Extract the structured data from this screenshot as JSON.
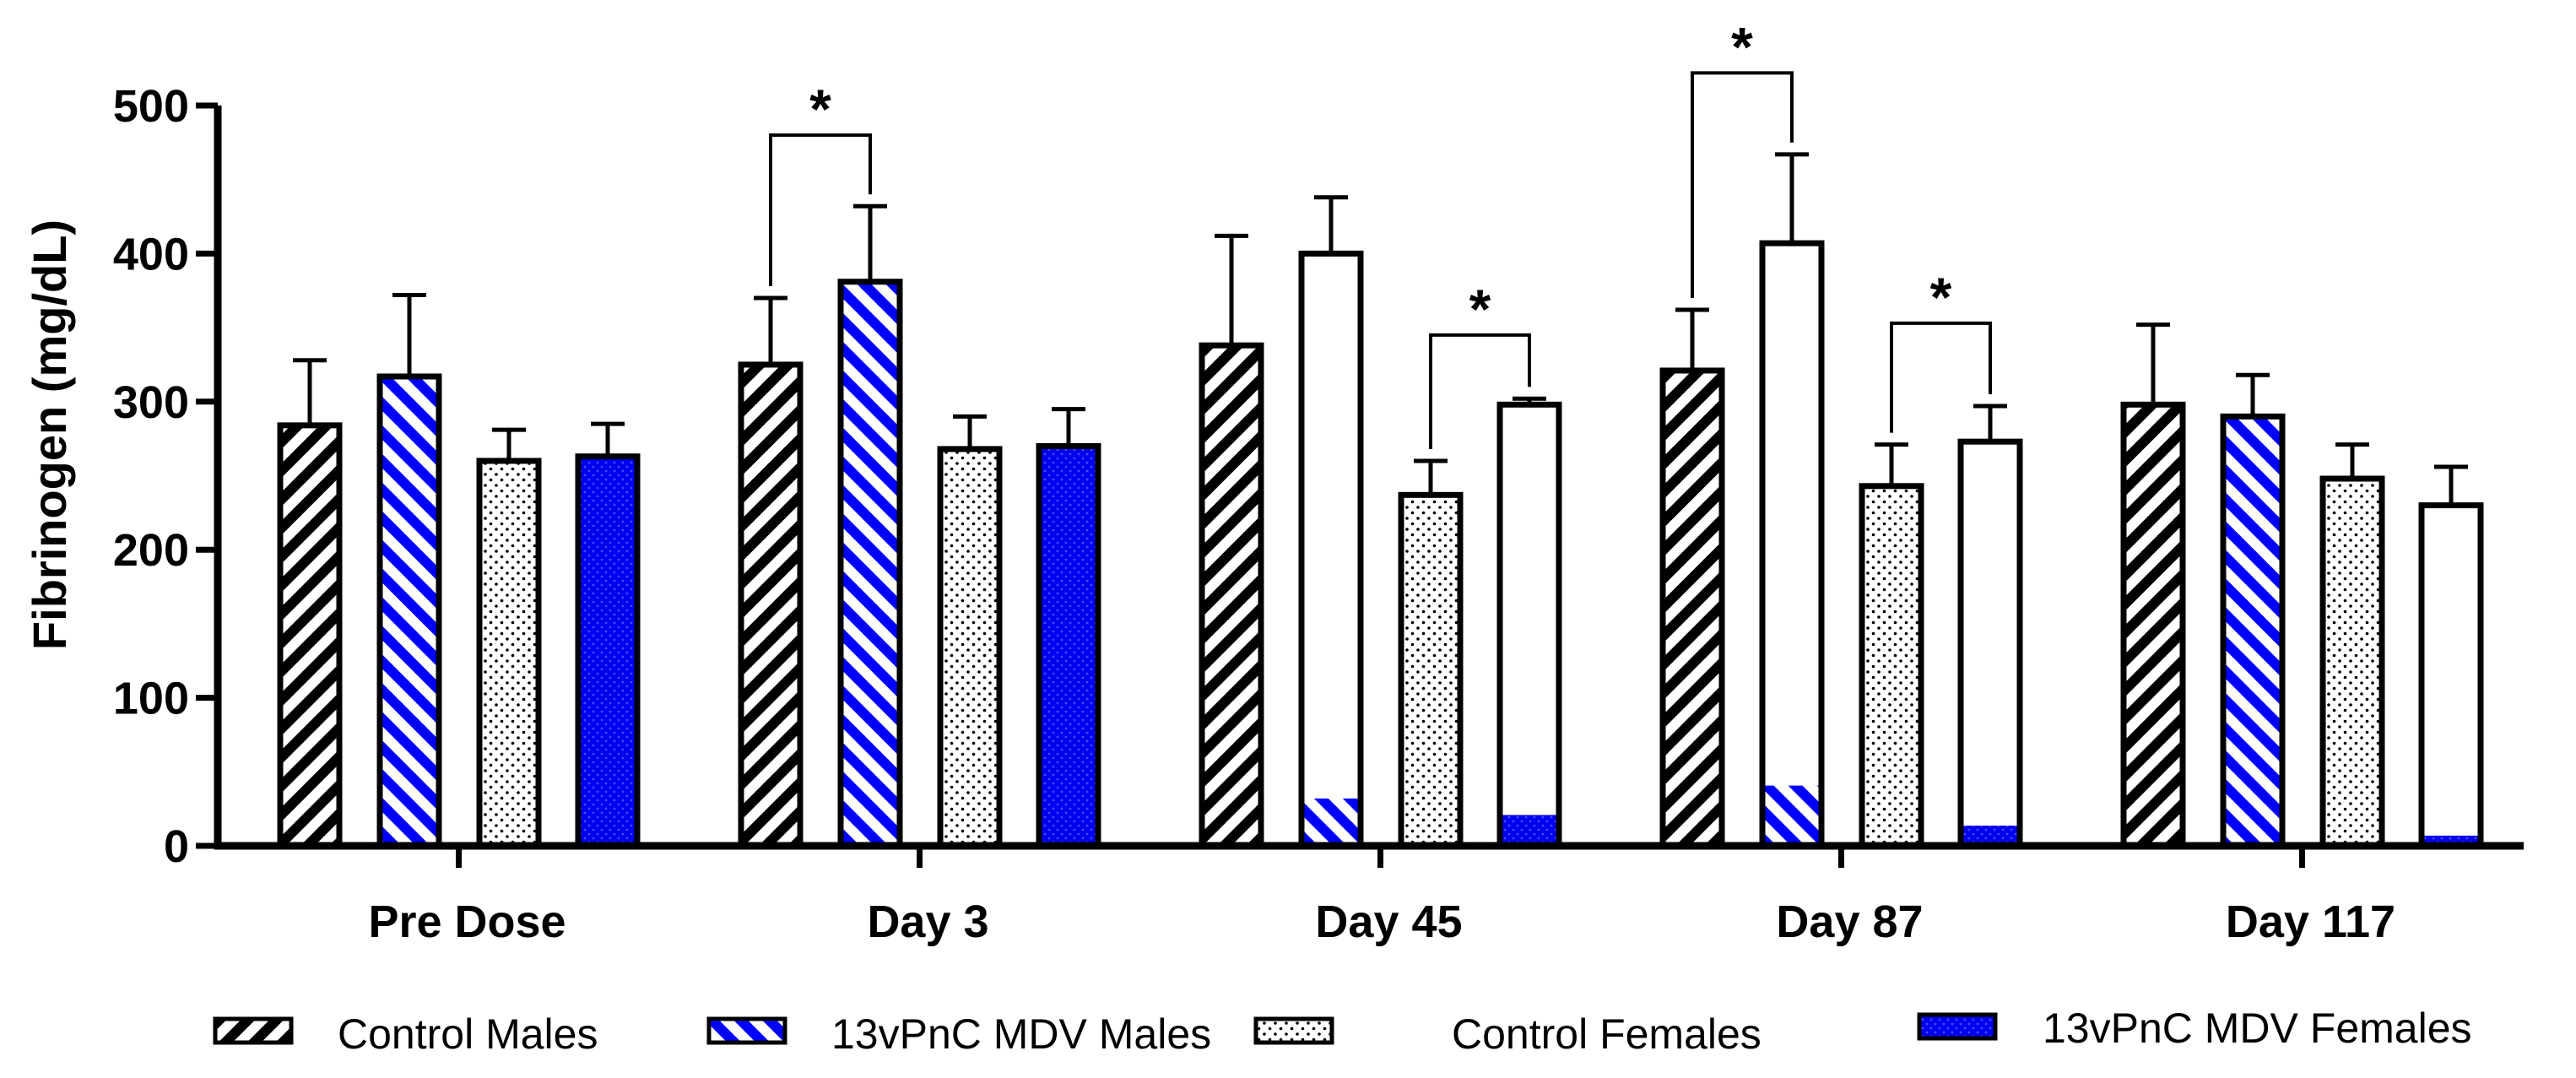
{
  "chart_data": {
    "type": "bar",
    "title": "",
    "xlabel": "",
    "ylabel": "Fibrinogen (mg/dL)",
    "ylim": [
      0,
      500
    ],
    "yticks": [
      0,
      100,
      200,
      300,
      400,
      500
    ],
    "grid": false,
    "legend_position": "bottom",
    "categories": [
      "Pre Dose",
      "Day 3",
      "Day 45",
      "Day 87",
      "Day 117"
    ],
    "series": [
      {
        "name": "Control Males",
        "pattern": "black-stripes",
        "color": "#000000",
        "values": [
          284,
          325,
          338,
          321,
          298
        ],
        "error": [
          44,
          45,
          74,
          41,
          54
        ]
      },
      {
        "name": "13vPnC MDV Males",
        "pattern": "blue-stripes",
        "color": "#0000ff",
        "values": [
          317,
          381,
          400,
          407,
          290
        ],
        "error": [
          55,
          51,
          38,
          60,
          28
        ],
        "fill_fraction": [
          1,
          1,
          0.08,
          0.1,
          1
        ]
      },
      {
        "name": "Control Females",
        "pattern": "dots",
        "color": "#000000",
        "values": [
          260,
          268,
          237,
          243,
          248
        ],
        "error": [
          21,
          22,
          23,
          28,
          23
        ]
      },
      {
        "name": "13vPnC MDV Females",
        "pattern": "blue-dots",
        "color": "#0000ff",
        "values": [
          263,
          270,
          298,
          273,
          230
        ],
        "error": [
          22,
          25,
          4,
          24,
          26
        ],
        "fill_fraction": [
          1,
          1,
          0.07,
          0.05,
          0.03
        ]
      }
    ],
    "annotations": [
      {
        "label": "*",
        "category": 1,
        "from_series": 0,
        "to_series": 1,
        "y": 480
      },
      {
        "label": "*",
        "category": 2,
        "from_series": 2,
        "to_series": 3,
        "y": 345
      },
      {
        "label": "*",
        "category": 3,
        "from_series": 0,
        "to_series": 1,
        "y": 522
      },
      {
        "label": "*",
        "category": 3,
        "from_series": 2,
        "to_series": 3,
        "y": 353
      }
    ]
  }
}
